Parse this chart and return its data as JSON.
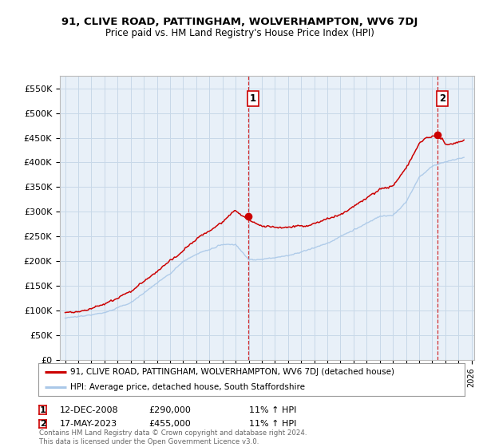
{
  "title": "91, CLIVE ROAD, PATTINGHAM, WOLVERHAMPTON, WV6 7DJ",
  "subtitle": "Price paid vs. HM Land Registry's House Price Index (HPI)",
  "ylabel_ticks": [
    "£0",
    "£50K",
    "£100K",
    "£150K",
    "£200K",
    "£250K",
    "£300K",
    "£350K",
    "£400K",
    "£450K",
    "£500K",
    "£550K"
  ],
  "ytick_values": [
    0,
    50000,
    100000,
    150000,
    200000,
    250000,
    300000,
    350000,
    400000,
    450000,
    500000,
    550000
  ],
  "ylim": [
    0,
    575000
  ],
  "xlim_start": 1994.6,
  "xlim_end": 2026.2,
  "red_color": "#cc0000",
  "blue_color": "#aac8e8",
  "background_color": "#ffffff",
  "grid_color": "#c8d8e8",
  "chart_bg": "#e8f0f8",
  "sale1_x": 2008.95,
  "sale1_y": 290000,
  "sale1_label": "1",
  "sale2_x": 2023.38,
  "sale2_y": 455000,
  "sale2_label": "2",
  "legend_line1": "91, CLIVE ROAD, PATTINGHAM, WOLVERHAMPTON, WV6 7DJ (detached house)",
  "legend_line2": "HPI: Average price, detached house, South Staffordshire",
  "annotation1_date": "12-DEC-2008",
  "annotation1_price": "£290,000",
  "annotation1_hpi": "11% ↑ HPI",
  "annotation2_date": "17-MAY-2023",
  "annotation2_price": "£455,000",
  "annotation2_hpi": "11% ↑ HPI",
  "footer": "Contains HM Land Registry data © Crown copyright and database right 2024.\nThis data is licensed under the Open Government Licence v3.0."
}
